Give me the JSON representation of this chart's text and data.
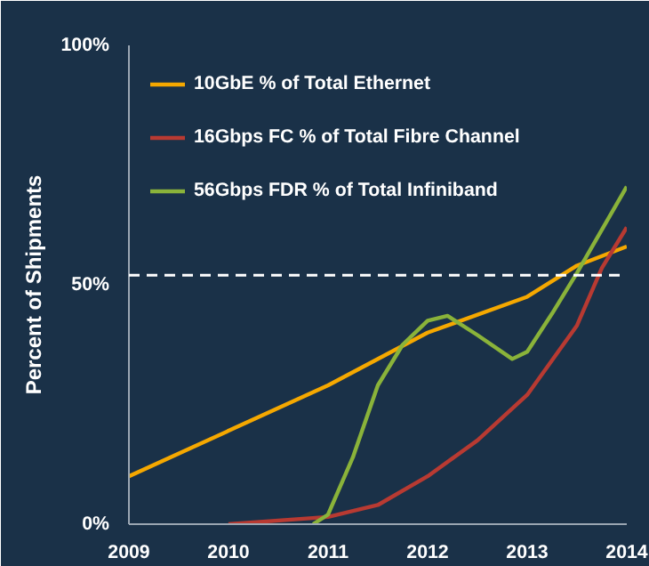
{
  "chart_data": {
    "type": "line",
    "ylabel": "Percent of Shipments",
    "xlim": [
      2009,
      2014
    ],
    "xticks": [
      2009,
      2010,
      2011,
      2012,
      2013,
      2014
    ],
    "ylim": [
      0,
      100
    ],
    "yticks": [
      {
        "value": 0,
        "label": "0%"
      },
      {
        "value": 50,
        "label": "50%"
      },
      {
        "value": 100,
        "label": "100%"
      }
    ],
    "grid": false,
    "legend": "top left",
    "marker": "none",
    "line_style": "solid",
    "ref_lines": [
      {
        "axis": "y",
        "value": 52,
        "line_style": "dashed",
        "color": "#ffffff"
      }
    ],
    "series": [
      {
        "name": "10GbE % of Total Ethernet",
        "color": "#f5a800",
        "x": [
          2009,
          2010,
          2011,
          2012,
          2013,
          2013.5,
          2014
        ],
        "values": [
          10,
          19.5,
          29,
          40,
          47.5,
          54,
          58
        ]
      },
      {
        "name": "16Gbps FC % of Total Fibre Channel",
        "color": "#b83a32",
        "x": [
          2010,
          2011,
          2011.5,
          2012,
          2012.5,
          2013,
          2013.5,
          2013.75,
          2014
        ],
        "values": [
          0,
          1.5,
          4,
          10,
          17.5,
          27,
          41.5,
          53.5,
          62
        ]
      },
      {
        "name": "56Gbps FDR % of Total Infiniband",
        "color": "#8ab33a",
        "x": [
          2010.85,
          2011,
          2011.25,
          2011.5,
          2011.75,
          2012,
          2012.2,
          2012.5,
          2012.85,
          2013,
          2013.25,
          2013.5,
          2014
        ],
        "values": [
          0,
          2,
          14,
          29,
          37.5,
          42.5,
          43.5,
          39.5,
          34.5,
          36,
          44,
          52.5,
          70.5
        ]
      }
    ]
  }
}
